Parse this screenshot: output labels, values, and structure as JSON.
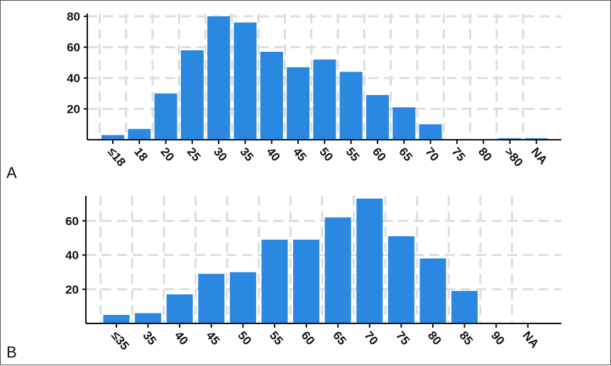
{
  "panels": [
    {
      "letter": "A"
    },
    {
      "letter": "B"
    }
  ],
  "chart_data": [
    {
      "type": "bar",
      "panel": "A",
      "categories": [
        "≤18",
        "18",
        "20",
        "25",
        "30",
        "35",
        "40",
        "45",
        "50",
        "55",
        "60",
        "65",
        "70",
        "75",
        "80",
        ">80",
        "NA"
      ],
      "values": [
        3,
        7,
        30,
        58,
        80,
        76,
        57,
        47,
        52,
        44,
        29,
        21,
        10,
        0,
        0,
        1,
        1
      ],
      "ylim": [
        0,
        80
      ],
      "yticks": [
        20,
        40,
        60,
        80
      ],
      "grid": true,
      "color": "#2b88e0"
    },
    {
      "type": "bar",
      "panel": "B",
      "categories": [
        "≤35",
        "35",
        "40",
        "45",
        "50",
        "55",
        "60",
        "65",
        "70",
        "75",
        "80",
        "85",
        "90",
        "NA"
      ],
      "values": [
        5,
        6,
        17,
        29,
        30,
        49,
        49,
        62,
        73,
        51,
        38,
        19,
        0,
        0
      ],
      "ylim": [
        0,
        73
      ],
      "yticks": [
        20,
        40,
        60
      ],
      "grid": true,
      "color": "#2b88e0"
    }
  ]
}
